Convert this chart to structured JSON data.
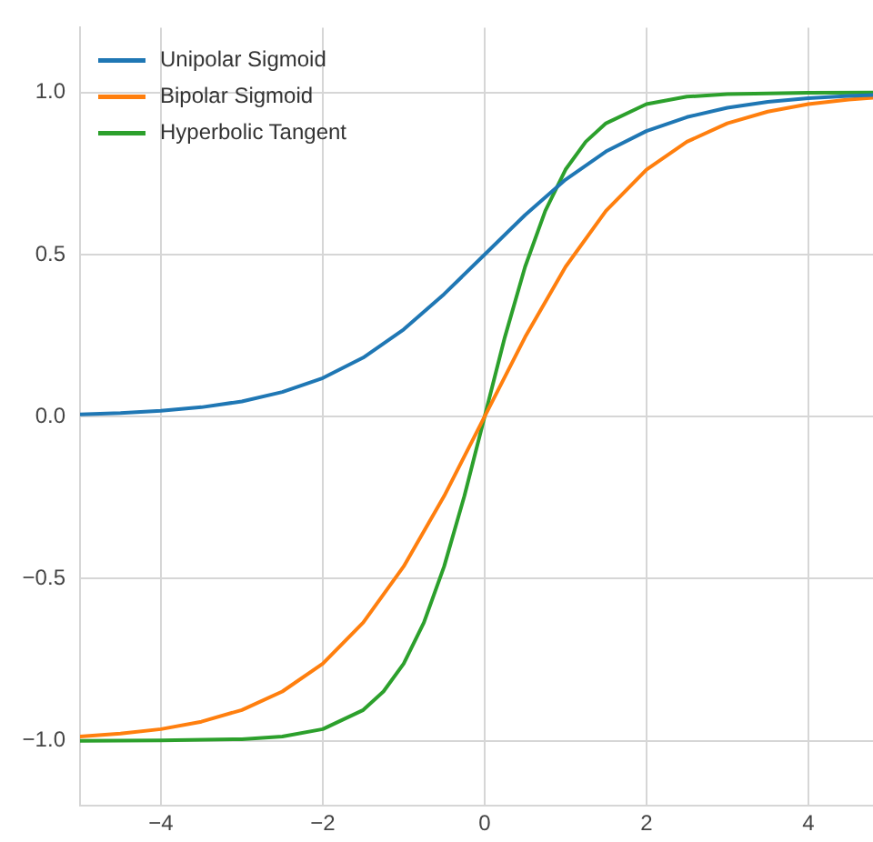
{
  "chart_data": {
    "type": "line",
    "xlim": [
      -5,
      4.8
    ],
    "ylim": [
      -1.2,
      1.2
    ],
    "xticks": [
      {
        "value": -4,
        "label": "−4"
      },
      {
        "value": -2,
        "label": "−2"
      },
      0,
      2,
      4
    ],
    "yticks": [
      {
        "value": -1,
        "label": "−1.0"
      },
      {
        "value": -0.5,
        "label": "−0.5"
      },
      {
        "value": 0,
        "label": "0.0"
      },
      {
        "value": 0.5,
        "label": "0.5"
      },
      {
        "value": 1,
        "label": "1.0"
      }
    ],
    "grid": true,
    "legend": "top left",
    "marker": "none",
    "line_style": "solid",
    "series": [
      {
        "name": "Unipolar Sigmoid",
        "color": "#1f77b4",
        "x": [
          -5,
          -4.5,
          -4,
          -3.5,
          -3,
          -2.5,
          -2,
          -1.5,
          -1,
          -0.5,
          0,
          0.5,
          1,
          1.5,
          2,
          2.5,
          3,
          3.5,
          4,
          4.5,
          4.8
        ],
        "values": [
          0.007,
          0.011,
          0.018,
          0.029,
          0.047,
          0.076,
          0.119,
          0.182,
          0.269,
          0.378,
          0.5,
          0.622,
          0.731,
          0.818,
          0.881,
          0.924,
          0.953,
          0.971,
          0.982,
          0.989,
          0.992
        ]
      },
      {
        "name": "Bipolar Sigmoid",
        "color": "#ff7f0e",
        "x": [
          -5,
          -4.5,
          -4,
          -3.5,
          -3,
          -2.5,
          -2,
          -1.5,
          -1,
          -0.5,
          0,
          0.5,
          1,
          1.5,
          2,
          2.5,
          3,
          3.5,
          4,
          4.5,
          4.8
        ],
        "values": [
          -0.987,
          -0.978,
          -0.964,
          -0.941,
          -0.905,
          -0.848,
          -0.762,
          -0.635,
          -0.462,
          -0.245,
          0,
          0.245,
          0.462,
          0.635,
          0.762,
          0.848,
          0.905,
          0.941,
          0.964,
          0.978,
          0.984
        ]
      },
      {
        "name": "Hyperbolic Tangent",
        "color": "#2ca02c",
        "x": [
          -5,
          -4,
          -3,
          -2.5,
          -2,
          -1.5,
          -1.25,
          -1,
          -0.75,
          -0.5,
          -0.25,
          0,
          0.25,
          0.5,
          0.75,
          1,
          1.25,
          1.5,
          2,
          2.5,
          3,
          4,
          4.8
        ],
        "values": [
          -1,
          -0.999,
          -0.995,
          -0.987,
          -0.964,
          -0.905,
          -0.848,
          -0.762,
          -0.635,
          -0.462,
          -0.245,
          0,
          0.245,
          0.462,
          0.635,
          0.762,
          0.848,
          0.905,
          0.964,
          0.987,
          0.995,
          0.999,
          1
        ]
      }
    ]
  }
}
